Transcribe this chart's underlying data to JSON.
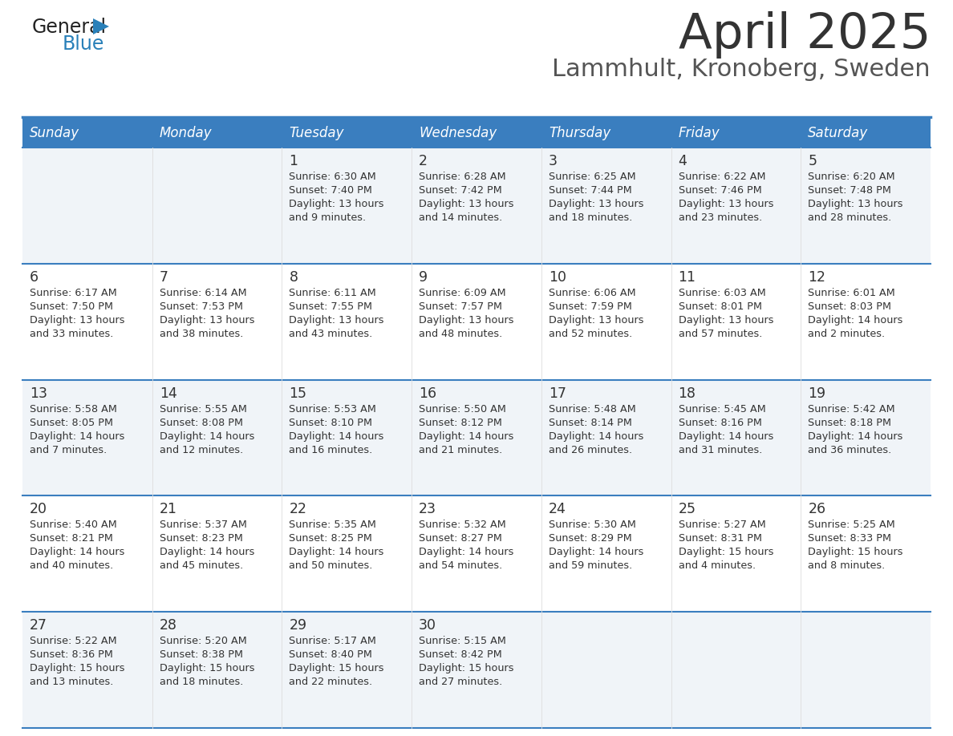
{
  "title": "April 2025",
  "subtitle": "Lammhult, Kronoberg, Sweden",
  "days_of_week": [
    "Sunday",
    "Monday",
    "Tuesday",
    "Wednesday",
    "Thursday",
    "Friday",
    "Saturday"
  ],
  "header_bg": "#3a7ebf",
  "header_text_color": "#ffffff",
  "row_bg_light": "#f0f4f8",
  "row_bg_white": "#ffffff",
  "row_border_color": "#3a7ebf",
  "cell_text_color": "#333333",
  "title_color": "#333333",
  "subtitle_color": "#555555",
  "logo_general_color": "#222222",
  "logo_blue_color": "#2980b9",
  "calendar_data": [
    [
      {
        "day": null,
        "sunrise": null,
        "sunset": null,
        "daylight": null
      },
      {
        "day": null,
        "sunrise": null,
        "sunset": null,
        "daylight": null
      },
      {
        "day": 1,
        "sunrise": "6:30 AM",
        "sunset": "7:40 PM",
        "daylight": "13 hours\nand 9 minutes."
      },
      {
        "day": 2,
        "sunrise": "6:28 AM",
        "sunset": "7:42 PM",
        "daylight": "13 hours\nand 14 minutes."
      },
      {
        "day": 3,
        "sunrise": "6:25 AM",
        "sunset": "7:44 PM",
        "daylight": "13 hours\nand 18 minutes."
      },
      {
        "day": 4,
        "sunrise": "6:22 AM",
        "sunset": "7:46 PM",
        "daylight": "13 hours\nand 23 minutes."
      },
      {
        "day": 5,
        "sunrise": "6:20 AM",
        "sunset": "7:48 PM",
        "daylight": "13 hours\nand 28 minutes."
      }
    ],
    [
      {
        "day": 6,
        "sunrise": "6:17 AM",
        "sunset": "7:50 PM",
        "daylight": "13 hours\nand 33 minutes."
      },
      {
        "day": 7,
        "sunrise": "6:14 AM",
        "sunset": "7:53 PM",
        "daylight": "13 hours\nand 38 minutes."
      },
      {
        "day": 8,
        "sunrise": "6:11 AM",
        "sunset": "7:55 PM",
        "daylight": "13 hours\nand 43 minutes."
      },
      {
        "day": 9,
        "sunrise": "6:09 AM",
        "sunset": "7:57 PM",
        "daylight": "13 hours\nand 48 minutes."
      },
      {
        "day": 10,
        "sunrise": "6:06 AM",
        "sunset": "7:59 PM",
        "daylight": "13 hours\nand 52 minutes."
      },
      {
        "day": 11,
        "sunrise": "6:03 AM",
        "sunset": "8:01 PM",
        "daylight": "13 hours\nand 57 minutes."
      },
      {
        "day": 12,
        "sunrise": "6:01 AM",
        "sunset": "8:03 PM",
        "daylight": "14 hours\nand 2 minutes."
      }
    ],
    [
      {
        "day": 13,
        "sunrise": "5:58 AM",
        "sunset": "8:05 PM",
        "daylight": "14 hours\nand 7 minutes."
      },
      {
        "day": 14,
        "sunrise": "5:55 AM",
        "sunset": "8:08 PM",
        "daylight": "14 hours\nand 12 minutes."
      },
      {
        "day": 15,
        "sunrise": "5:53 AM",
        "sunset": "8:10 PM",
        "daylight": "14 hours\nand 16 minutes."
      },
      {
        "day": 16,
        "sunrise": "5:50 AM",
        "sunset": "8:12 PM",
        "daylight": "14 hours\nand 21 minutes."
      },
      {
        "day": 17,
        "sunrise": "5:48 AM",
        "sunset": "8:14 PM",
        "daylight": "14 hours\nand 26 minutes."
      },
      {
        "day": 18,
        "sunrise": "5:45 AM",
        "sunset": "8:16 PM",
        "daylight": "14 hours\nand 31 minutes."
      },
      {
        "day": 19,
        "sunrise": "5:42 AM",
        "sunset": "8:18 PM",
        "daylight": "14 hours\nand 36 minutes."
      }
    ],
    [
      {
        "day": 20,
        "sunrise": "5:40 AM",
        "sunset": "8:21 PM",
        "daylight": "14 hours\nand 40 minutes."
      },
      {
        "day": 21,
        "sunrise": "5:37 AM",
        "sunset": "8:23 PM",
        "daylight": "14 hours\nand 45 minutes."
      },
      {
        "day": 22,
        "sunrise": "5:35 AM",
        "sunset": "8:25 PM",
        "daylight": "14 hours\nand 50 minutes."
      },
      {
        "day": 23,
        "sunrise": "5:32 AM",
        "sunset": "8:27 PM",
        "daylight": "14 hours\nand 54 minutes."
      },
      {
        "day": 24,
        "sunrise": "5:30 AM",
        "sunset": "8:29 PM",
        "daylight": "14 hours\nand 59 minutes."
      },
      {
        "day": 25,
        "sunrise": "5:27 AM",
        "sunset": "8:31 PM",
        "daylight": "15 hours\nand 4 minutes."
      },
      {
        "day": 26,
        "sunrise": "5:25 AM",
        "sunset": "8:33 PM",
        "daylight": "15 hours\nand 8 minutes."
      }
    ],
    [
      {
        "day": 27,
        "sunrise": "5:22 AM",
        "sunset": "8:36 PM",
        "daylight": "15 hours\nand 13 minutes."
      },
      {
        "day": 28,
        "sunrise": "5:20 AM",
        "sunset": "8:38 PM",
        "daylight": "15 hours\nand 18 minutes."
      },
      {
        "day": 29,
        "sunrise": "5:17 AM",
        "sunset": "8:40 PM",
        "daylight": "15 hours\nand 22 minutes."
      },
      {
        "day": 30,
        "sunrise": "5:15 AM",
        "sunset": "8:42 PM",
        "daylight": "15 hours\nand 27 minutes."
      },
      {
        "day": null,
        "sunrise": null,
        "sunset": null,
        "daylight": null
      },
      {
        "day": null,
        "sunrise": null,
        "sunset": null,
        "daylight": null
      },
      {
        "day": null,
        "sunrise": null,
        "sunset": null,
        "daylight": null
      }
    ]
  ]
}
